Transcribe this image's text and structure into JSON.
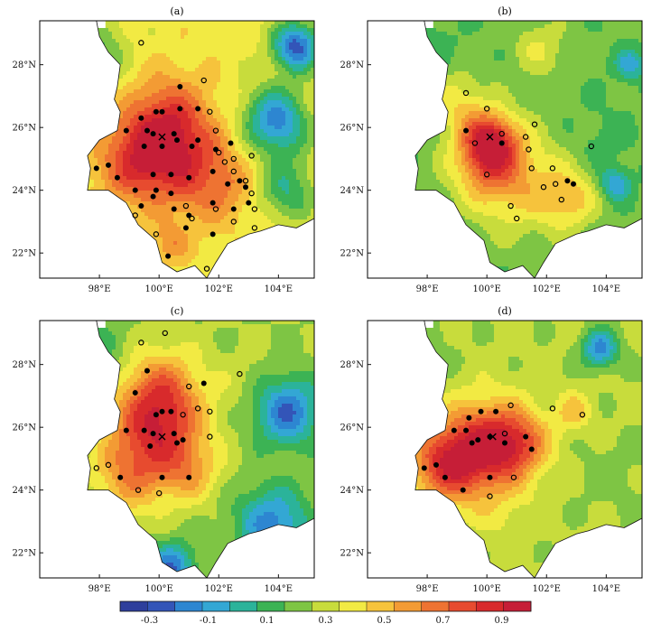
{
  "colors": {
    "ramp": [
      "#2e3f9c",
      "#3355b8",
      "#2d86d1",
      "#33a7d4",
      "#2bb39a",
      "#3cb354",
      "#7ec544",
      "#c8dc3c",
      "#f2ea43",
      "#f6c33c",
      "#f39b34",
      "#ee7332",
      "#e74b2f",
      "#d82a2c",
      "#c61e37"
    ],
    "station_filled": "#000000",
    "station_open": "#000000",
    "cross": "#000000",
    "frame": "#000000",
    "nodata": "#ffffff"
  },
  "colorbar": {
    "labels": [
      "-0.3",
      "-0.1",
      "0.1",
      "0.3",
      "0.5",
      "0.7",
      "0.9"
    ],
    "min": -0.4,
    "max": 1.0,
    "step": 0.1
  },
  "axes": {
    "x_ticks": [
      "98°E",
      "100°E",
      "102°E",
      "104°E"
    ],
    "x_values": [
      98,
      100,
      102,
      104
    ],
    "y_ticks": [
      "22°N",
      "24°N",
      "26°N",
      "28°N"
    ],
    "y_values": [
      22,
      24,
      26,
      28
    ],
    "lon_range": [
      96.0,
      105.2
    ],
    "lat_range": [
      21.2,
      29.4
    ]
  },
  "panels": [
    {
      "title": "(a)",
      "center": {
        "lon": 100.1,
        "lat": 25.7
      },
      "hotspots": [
        {
          "lon": 100.0,
          "lat": 25.6,
          "v": 0.95,
          "r": 1.4
        },
        {
          "lon": 101.2,
          "lat": 24.6,
          "v": 0.75,
          "r": 1.6
        },
        {
          "lon": 99.0,
          "lat": 24.7,
          "v": 0.7,
          "r": 1.2
        },
        {
          "lon": 100.5,
          "lat": 26.8,
          "v": 0.6,
          "r": 1.2
        },
        {
          "lon": 102.3,
          "lat": 24.0,
          "v": 0.55,
          "r": 1.0
        },
        {
          "lon": 100.4,
          "lat": 22.3,
          "v": 0.65,
          "r": 0.6
        },
        {
          "lon": 103.9,
          "lat": 26.2,
          "v": -0.15,
          "r": 1.1
        },
        {
          "lon": 104.6,
          "lat": 28.6,
          "v": -0.25,
          "r": 0.8
        },
        {
          "lon": 104.3,
          "lat": 24.0,
          "v": 0.1,
          "r": 1.0
        },
        {
          "lon": 98.0,
          "lat": 28.5,
          "v": 0.2,
          "r": 1.0
        }
      ],
      "base": 0.45,
      "filled": [
        [
          99.4,
          26.3
        ],
        [
          99.9,
          26.5
        ],
        [
          100.1,
          26.5
        ],
        [
          100.7,
          27.3
        ],
        [
          100.7,
          26.6
        ],
        [
          101.3,
          26.6
        ],
        [
          98.9,
          25.9
        ],
        [
          99.6,
          25.9
        ],
        [
          99.8,
          25.8
        ],
        [
          100.5,
          25.8
        ],
        [
          101.3,
          25.6
        ],
        [
          102.4,
          25.5
        ],
        [
          99.5,
          25.4
        ],
        [
          100.1,
          25.4
        ],
        [
          100.6,
          25.6
        ],
        [
          101.1,
          25.4
        ],
        [
          101.9,
          25.3
        ],
        [
          98.3,
          24.8
        ],
        [
          97.9,
          24.7
        ],
        [
          98.6,
          24.4
        ],
        [
          99.8,
          24.5
        ],
        [
          100.4,
          24.5
        ],
        [
          101.0,
          24.4
        ],
        [
          101.8,
          24.6
        ],
        [
          102.7,
          24.3
        ],
        [
          99.2,
          24.0
        ],
        [
          99.9,
          24.0
        ],
        [
          100.4,
          23.9
        ],
        [
          101.8,
          23.6
        ],
        [
          102.3,
          24.2
        ],
        [
          102.9,
          24.1
        ],
        [
          99.4,
          23.5
        ],
        [
          99.8,
          23.8
        ],
        [
          100.5,
          23.4
        ],
        [
          101.0,
          23.2
        ],
        [
          102.5,
          23.4
        ],
        [
          103.0,
          23.6
        ],
        [
          100.9,
          22.8
        ],
        [
          101.8,
          22.6
        ],
        [
          100.3,
          21.9
        ]
      ],
      "open": [
        [
          99.4,
          28.7
        ],
        [
          101.5,
          27.5
        ],
        [
          101.7,
          26.5
        ],
        [
          101.9,
          25.9
        ],
        [
          102.0,
          25.2
        ],
        [
          102.2,
          24.9
        ],
        [
          102.5,
          25.0
        ],
        [
          103.1,
          25.1
        ],
        [
          102.9,
          24.3
        ],
        [
          103.1,
          23.9
        ],
        [
          103.2,
          23.4
        ],
        [
          99.2,
          23.2
        ],
        [
          100.9,
          23.5
        ],
        [
          101.1,
          23.1
        ],
        [
          101.9,
          23.4
        ],
        [
          102.5,
          23.0
        ],
        [
          103.2,
          22.8
        ],
        [
          99.9,
          22.6
        ],
        [
          101.6,
          21.5
        ],
        [
          102.5,
          24.6
        ]
      ]
    },
    {
      "title": "(b)",
      "center": {
        "lon": 100.1,
        "lat": 25.7
      },
      "hotspots": [
        {
          "lon": 100.1,
          "lat": 25.6,
          "v": 0.85,
          "r": 0.9
        },
        {
          "lon": 100.0,
          "lat": 24.8,
          "v": 0.6,
          "r": 1.2
        },
        {
          "lon": 101.2,
          "lat": 24.2,
          "v": 0.5,
          "r": 1.6
        },
        {
          "lon": 99.0,
          "lat": 26.8,
          "v": 0.45,
          "r": 1.0
        },
        {
          "lon": 102.8,
          "lat": 23.7,
          "v": 0.5,
          "r": 0.9
        },
        {
          "lon": 101.8,
          "lat": 28.5,
          "v": 0.4,
          "r": 0.9
        },
        {
          "lon": 103.8,
          "lat": 25.6,
          "v": 0.15,
          "r": 1.0
        },
        {
          "lon": 104.3,
          "lat": 24.2,
          "v": -0.1,
          "r": 0.5
        },
        {
          "lon": 104.8,
          "lat": 28.0,
          "v": -0.05,
          "r": 0.5
        },
        {
          "lon": 98.0,
          "lat": 28.5,
          "v": 0.15,
          "r": 1.0
        }
      ],
      "base": 0.22,
      "filled": [
        [
          99.3,
          25.9
        ],
        [
          100.5,
          25.5
        ],
        [
          102.7,
          24.3
        ],
        [
          102.9,
          24.2
        ]
      ],
      "open": [
        [
          99.3,
          27.1
        ],
        [
          100.0,
          26.6
        ],
        [
          99.6,
          25.5
        ],
        [
          100.0,
          24.5
        ],
        [
          100.5,
          25.8
        ],
        [
          101.3,
          25.7
        ],
        [
          101.4,
          25.3
        ],
        [
          101.6,
          26.1
        ],
        [
          102.2,
          24.7
        ],
        [
          101.5,
          24.7
        ],
        [
          101.9,
          24.1
        ],
        [
          102.3,
          24.2
        ],
        [
          102.5,
          23.7
        ],
        [
          103.5,
          25.4
        ],
        [
          100.8,
          23.5
        ],
        [
          101.0,
          23.1
        ]
      ]
    },
    {
      "title": "(c)",
      "center": {
        "lon": 100.1,
        "lat": 25.7
      },
      "hotspots": [
        {
          "lon": 99.9,
          "lat": 25.9,
          "v": 0.85,
          "r": 1.5
        },
        {
          "lon": 100.1,
          "lat": 27.2,
          "v": 0.65,
          "r": 1.3
        },
        {
          "lon": 99.0,
          "lat": 24.4,
          "v": 0.6,
          "r": 1.2
        },
        {
          "lon": 101.0,
          "lat": 24.6,
          "v": 0.55,
          "r": 1.0
        },
        {
          "lon": 104.3,
          "lat": 26.5,
          "v": -0.2,
          "r": 1.1
        },
        {
          "lon": 103.8,
          "lat": 22.9,
          "v": -0.15,
          "r": 1.2
        },
        {
          "lon": 100.4,
          "lat": 21.5,
          "v": -0.2,
          "r": 0.8
        },
        {
          "lon": 102.8,
          "lat": 27.5,
          "v": 0.35,
          "r": 1.0
        },
        {
          "lon": 98.0,
          "lat": 28.5,
          "v": 0.15,
          "r": 1.0
        }
      ],
      "base": 0.3,
      "filled": [
        [
          99.6,
          27.8
        ],
        [
          99.2,
          27.1
        ],
        [
          99.9,
          26.4
        ],
        [
          100.1,
          26.5
        ],
        [
          100.4,
          26.5
        ],
        [
          101.5,
          27.4
        ],
        [
          98.9,
          25.9
        ],
        [
          99.5,
          25.9
        ],
        [
          99.8,
          25.8
        ],
        [
          100.5,
          25.8
        ],
        [
          100.6,
          25.5
        ],
        [
          99.7,
          25.4
        ],
        [
          98.7,
          24.4
        ],
        [
          100.1,
          24.4
        ],
        [
          101.0,
          24.4
        ],
        [
          100.8,
          25.6
        ]
      ],
      "open": [
        [
          99.4,
          28.7
        ],
        [
          100.2,
          29.0
        ],
        [
          101.0,
          27.3
        ],
        [
          102.7,
          27.7
        ],
        [
          100.8,
          26.4
        ],
        [
          101.3,
          26.6
        ],
        [
          101.7,
          26.5
        ],
        [
          101.7,
          25.7
        ],
        [
          98.3,
          24.8
        ],
        [
          97.9,
          24.7
        ],
        [
          99.3,
          24.0
        ],
        [
          100.0,
          23.9
        ]
      ]
    },
    {
      "title": "(d)",
      "center": {
        "lon": 100.2,
        "lat": 25.7
      },
      "hotspots": [
        {
          "lon": 100.0,
          "lat": 25.4,
          "v": 0.95,
          "r": 1.4
        },
        {
          "lon": 98.6,
          "lat": 24.8,
          "v": 0.85,
          "r": 1.2
        },
        {
          "lon": 101.1,
          "lat": 25.5,
          "v": 0.65,
          "r": 1.0
        },
        {
          "lon": 102.9,
          "lat": 26.5,
          "v": 0.55,
          "r": 0.6
        },
        {
          "lon": 103.8,
          "lat": 28.5,
          "v": -0.15,
          "r": 0.6
        },
        {
          "lon": 104.2,
          "lat": 24.5,
          "v": 0.25,
          "r": 1.2
        },
        {
          "lon": 98.0,
          "lat": 28.5,
          "v": 0.25,
          "r": 1.0
        },
        {
          "lon": 100.5,
          "lat": 23.2,
          "v": 0.4,
          "r": 1.0
        }
      ],
      "base": 0.32,
      "filled": [
        [
          99.4,
          26.3
        ],
        [
          99.8,
          26.5
        ],
        [
          100.3,
          26.5
        ],
        [
          98.9,
          25.9
        ],
        [
          99.3,
          25.9
        ],
        [
          99.7,
          25.6
        ],
        [
          100.1,
          25.7
        ],
        [
          100.6,
          25.5
        ],
        [
          101.3,
          25.7
        ],
        [
          101.5,
          25.3
        ],
        [
          97.9,
          24.7
        ],
        [
          98.3,
          24.8
        ],
        [
          98.6,
          24.4
        ],
        [
          99.2,
          24.0
        ],
        [
          100.1,
          24.4
        ],
        [
          99.5,
          25.5
        ]
      ],
      "open": [
        [
          100.8,
          26.7
        ],
        [
          100.6,
          25.8
        ],
        [
          102.2,
          26.6
        ],
        [
          103.2,
          26.4
        ],
        [
          100.9,
          24.4
        ],
        [
          100.1,
          23.8
        ]
      ]
    }
  ]
}
